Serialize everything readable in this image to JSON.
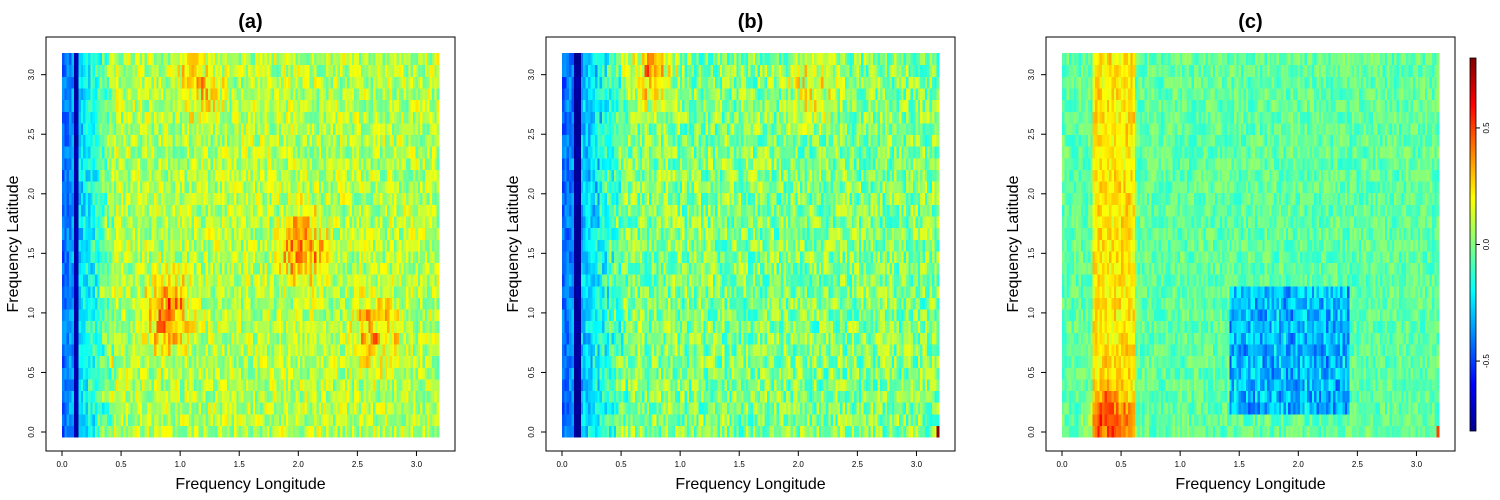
{
  "chart_data": [
    {
      "type": "heatmap",
      "title": "(a)",
      "xlabel": "Frequency Longitude",
      "ylabel": "Frequency Latitude",
      "xlim": [
        0,
        3.14
      ],
      "ylim": [
        0,
        3.14
      ],
      "xticks": [
        "0.0",
        "0.5",
        "1.0",
        "1.5",
        "2.0",
        "2.5",
        "3.0"
      ],
      "yticks": [
        "0.0",
        "0.5",
        "1.0",
        "1.5",
        "2.0",
        "2.5",
        "3.0"
      ],
      "pattern": {
        "band": {
          "x_from": 0.09,
          "x_to": 0.14,
          "value": -0.75
        },
        "edge_ramp": {
          "x_from": 0.0,
          "x_to": 0.45,
          "value_start": -0.45,
          "value_end": 0.0
        },
        "hot_spots": [
          {
            "x": 0.9,
            "y": 1.0,
            "value": 0.35
          },
          {
            "x": 2.0,
            "y": 1.55,
            "value": 0.35
          },
          {
            "x": 2.6,
            "y": 0.85,
            "value": 0.25
          },
          {
            "x": 1.15,
            "y": 2.9,
            "value": 0.2
          }
        ],
        "mean": 0.08,
        "noise": 0.16
      }
    },
    {
      "type": "heatmap",
      "title": "(b)",
      "xlabel": "Frequency Longitude",
      "ylabel": "Frequency Latitude",
      "xlim": [
        0,
        3.14
      ],
      "ylim": [
        0,
        3.14
      ],
      "xticks": [
        "0.0",
        "0.5",
        "1.0",
        "1.5",
        "2.0",
        "2.5",
        "3.0"
      ],
      "yticks": [
        "0.0",
        "0.5",
        "1.0",
        "1.5",
        "2.0",
        "2.5",
        "3.0"
      ],
      "pattern": {
        "band": {
          "x_from": 0.09,
          "x_to": 0.15,
          "value": -0.78
        },
        "edge_ramp": {
          "x_from": 0.0,
          "x_to": 0.55,
          "value_start": -0.45,
          "value_end": 0.0
        },
        "hot_spots": [
          {
            "x": 0.75,
            "y": 3.0,
            "value": 0.3
          },
          {
            "x": 2.1,
            "y": 2.9,
            "value": 0.25
          }
        ],
        "corner_cell": {
          "x": 3.14,
          "y": 0.0,
          "value": 0.78
        },
        "mean": 0.0,
        "noise": 0.18
      }
    },
    {
      "type": "heatmap",
      "title": "(c)",
      "xlabel": "Frequency Longitude",
      "ylabel": "Frequency Latitude",
      "xlim": [
        0,
        3.14
      ],
      "ylim": [
        0,
        3.14
      ],
      "xticks": [
        "0.0",
        "0.5",
        "1.0",
        "1.5",
        "2.0",
        "2.5",
        "3.0"
      ],
      "yticks": [
        "0.0",
        "0.5",
        "1.0",
        "1.5",
        "2.0",
        "2.5",
        "3.0"
      ],
      "pattern": {
        "warm_band": {
          "x_from": 0.25,
          "x_to": 0.6,
          "value": 0.28
        },
        "cool_region": {
          "x_from": 1.4,
          "x_to": 2.4,
          "y_from": 0.2,
          "y_to": 1.2,
          "value": -0.3
        },
        "hot_spots": [
          {
            "x": 0.4,
            "y": 0.1,
            "value": 0.3
          }
        ],
        "corner_cell": {
          "x": 3.14,
          "y": 0.0,
          "value": 0.5
        },
        "mean": -0.05,
        "noise": 0.1
      }
    }
  ],
  "colorbar": {
    "min": -0.8,
    "max": 0.8,
    "ticks": [
      "-0.5",
      "0.0",
      "0.5"
    ],
    "tick_values": [
      -0.5,
      0.0,
      0.5
    ],
    "colormap": [
      "#00008f",
      "#0000ff",
      "#0080ff",
      "#00ffff",
      "#80ff80",
      "#ffff00",
      "#ff8000",
      "#ff0000",
      "#800000"
    ]
  }
}
